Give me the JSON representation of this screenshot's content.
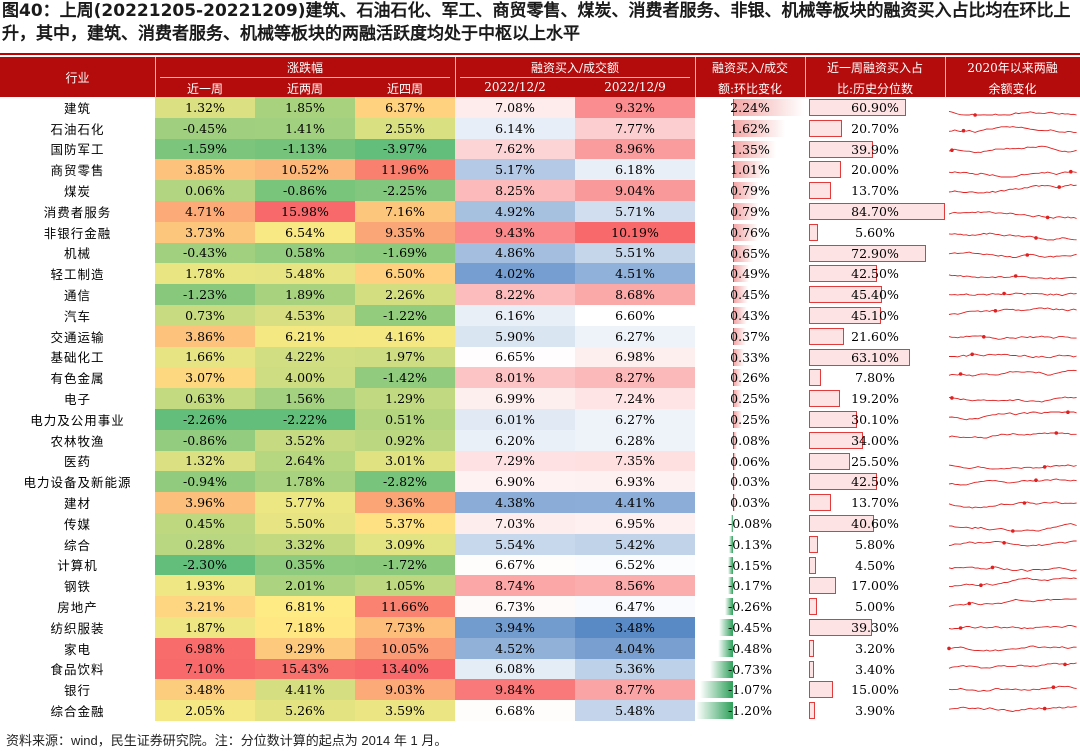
{
  "title": "图40：上周(20221205-20221209)建筑、石油石化、军工、商贸零售、煤炭、消费者服务、非银、机械等板块的融资买入占比均在环比上升，其中，建筑、消费者服务、机械等板块的两融活跃度均处于中枢以上水平",
  "source": "资料来源：wind，民生证券研究院。注：分位数计算的起点为 2014 年 1 月。",
  "headers": {
    "industry": "行业",
    "change": "涨跌幅",
    "w1": "近一周",
    "w2": "近两周",
    "w4": "近四周",
    "ratio": "融资买入/成交额",
    "d1": "2022/12/2",
    "d2": "2022/12/9",
    "wow1": "融资买入/成交",
    "wow2": "额:环比变化",
    "pct1": "近一周融资买入占",
    "pct2": "比:历史分位数",
    "spark1": "2020年以来两融",
    "spark2": "余额变化"
  },
  "rows": [
    {
      "name": "建筑",
      "w1": "1.32%",
      "w2": "1.85%",
      "w4": "6.37%",
      "d1": "7.08%",
      "d2": "9.32%",
      "chg": "2.24%",
      "pct": "60.90%"
    },
    {
      "name": "石油石化",
      "w1": "-0.45%",
      "w2": "1.41%",
      "w4": "2.55%",
      "d1": "6.14%",
      "d2": "7.77%",
      "chg": "1.62%",
      "pct": "20.70%"
    },
    {
      "name": "国防军工",
      "w1": "-1.59%",
      "w2": "-1.13%",
      "w4": "-3.97%",
      "d1": "7.62%",
      "d2": "8.96%",
      "chg": "1.35%",
      "pct": "39.90%"
    },
    {
      "name": "商贸零售",
      "w1": "3.85%",
      "w2": "10.52%",
      "w4": "11.96%",
      "d1": "5.17%",
      "d2": "6.18%",
      "chg": "1.01%",
      "pct": "20.00%"
    },
    {
      "name": "煤炭",
      "w1": "0.06%",
      "w2": "-0.86%",
      "w4": "-2.25%",
      "d1": "8.25%",
      "d2": "9.04%",
      "chg": "0.79%",
      "pct": "13.70%"
    },
    {
      "name": "消费者服务",
      "w1": "4.71%",
      "w2": "15.98%",
      "w4": "7.16%",
      "d1": "4.92%",
      "d2": "5.71%",
      "chg": "0.79%",
      "pct": "84.70%"
    },
    {
      "name": "非银行金融",
      "w1": "3.73%",
      "w2": "6.54%",
      "w4": "9.35%",
      "d1": "9.43%",
      "d2": "10.19%",
      "chg": "0.76%",
      "pct": "5.60%"
    },
    {
      "name": "机械",
      "w1": "-0.43%",
      "w2": "0.58%",
      "w4": "-1.69%",
      "d1": "4.86%",
      "d2": "5.51%",
      "chg": "0.65%",
      "pct": "72.90%"
    },
    {
      "name": "轻工制造",
      "w1": "1.78%",
      "w2": "5.48%",
      "w4": "6.50%",
      "d1": "4.02%",
      "d2": "4.51%",
      "chg": "0.49%",
      "pct": "42.50%"
    },
    {
      "name": "通信",
      "w1": "-1.23%",
      "w2": "1.89%",
      "w4": "2.26%",
      "d1": "8.22%",
      "d2": "8.68%",
      "chg": "0.45%",
      "pct": "45.40%"
    },
    {
      "name": "汽车",
      "w1": "0.73%",
      "w2": "4.53%",
      "w4": "-1.22%",
      "d1": "6.16%",
      "d2": "6.60%",
      "chg": "0.43%",
      "pct": "45.10%"
    },
    {
      "name": "交通运输",
      "w1": "3.86%",
      "w2": "6.21%",
      "w4": "4.16%",
      "d1": "5.90%",
      "d2": "6.27%",
      "chg": "0.37%",
      "pct": "21.60%"
    },
    {
      "name": "基础化工",
      "w1": "1.66%",
      "w2": "4.22%",
      "w4": "1.97%",
      "d1": "6.65%",
      "d2": "6.98%",
      "chg": "0.33%",
      "pct": "63.10%"
    },
    {
      "name": "有色金属",
      "w1": "3.07%",
      "w2": "4.00%",
      "w4": "-1.42%",
      "d1": "8.01%",
      "d2": "8.27%",
      "chg": "0.26%",
      "pct": "7.80%"
    },
    {
      "name": "电子",
      "w1": "0.63%",
      "w2": "1.56%",
      "w4": "1.29%",
      "d1": "6.99%",
      "d2": "7.24%",
      "chg": "0.25%",
      "pct": "19.20%"
    },
    {
      "name": "电力及公用事业",
      "w1": "-2.26%",
      "w2": "-2.22%",
      "w4": "0.51%",
      "d1": "6.01%",
      "d2": "6.27%",
      "chg": "0.25%",
      "pct": "30.10%"
    },
    {
      "name": "农林牧渔",
      "w1": "-0.86%",
      "w2": "3.52%",
      "w4": "0.92%",
      "d1": "6.20%",
      "d2": "6.28%",
      "chg": "0.08%",
      "pct": "34.00%"
    },
    {
      "name": "医药",
      "w1": "1.32%",
      "w2": "2.64%",
      "w4": "3.01%",
      "d1": "7.29%",
      "d2": "7.35%",
      "chg": "0.06%",
      "pct": "25.50%"
    },
    {
      "name": "电力设备及新能源",
      "w1": "-0.94%",
      "w2": "1.78%",
      "w4": "-2.82%",
      "d1": "6.90%",
      "d2": "6.93%",
      "chg": "0.03%",
      "pct": "42.50%"
    },
    {
      "name": "建材",
      "w1": "3.96%",
      "w2": "5.77%",
      "w4": "9.36%",
      "d1": "4.38%",
      "d2": "4.41%",
      "chg": "0.03%",
      "pct": "13.70%"
    },
    {
      "name": "传媒",
      "w1": "0.45%",
      "w2": "5.50%",
      "w4": "5.37%",
      "d1": "7.03%",
      "d2": "6.95%",
      "chg": "-0.08%",
      "pct": "40.60%"
    },
    {
      "name": "综合",
      "w1": "0.28%",
      "w2": "3.32%",
      "w4": "3.09%",
      "d1": "5.54%",
      "d2": "5.42%",
      "chg": "-0.13%",
      "pct": "5.80%"
    },
    {
      "name": "计算机",
      "w1": "-2.30%",
      "w2": "0.35%",
      "w4": "-1.72%",
      "d1": "6.67%",
      "d2": "6.52%",
      "chg": "-0.15%",
      "pct": "4.50%"
    },
    {
      "name": "钢铁",
      "w1": "1.93%",
      "w2": "2.01%",
      "w4": "1.05%",
      "d1": "8.74%",
      "d2": "8.56%",
      "chg": "-0.17%",
      "pct": "17.00%"
    },
    {
      "name": "房地产",
      "w1": "3.21%",
      "w2": "6.81%",
      "w4": "11.66%",
      "d1": "6.73%",
      "d2": "6.47%",
      "chg": "-0.26%",
      "pct": "5.00%"
    },
    {
      "name": "纺织服装",
      "w1": "1.87%",
      "w2": "7.18%",
      "w4": "7.73%",
      "d1": "3.94%",
      "d2": "3.48%",
      "chg": "-0.45%",
      "pct": "39.30%"
    },
    {
      "name": "家电",
      "w1": "6.98%",
      "w2": "9.29%",
      "w4": "10.05%",
      "d1": "4.52%",
      "d2": "4.04%",
      "chg": "-0.48%",
      "pct": "3.20%"
    },
    {
      "name": "食品饮料",
      "w1": "7.10%",
      "w2": "15.43%",
      "w4": "13.40%",
      "d1": "6.08%",
      "d2": "5.36%",
      "chg": "-0.73%",
      "pct": "3.40%"
    },
    {
      "name": "银行",
      "w1": "3.48%",
      "w2": "4.41%",
      "w4": "9.03%",
      "d1": "9.84%",
      "d2": "8.77%",
      "chg": "-1.07%",
      "pct": "15.00%"
    },
    {
      "name": "综合金融",
      "w1": "2.05%",
      "w2": "5.26%",
      "w4": "3.59%",
      "d1": "6.68%",
      "d2": "5.48%",
      "chg": "-1.20%",
      "pct": "3.90%"
    }
  ]
}
